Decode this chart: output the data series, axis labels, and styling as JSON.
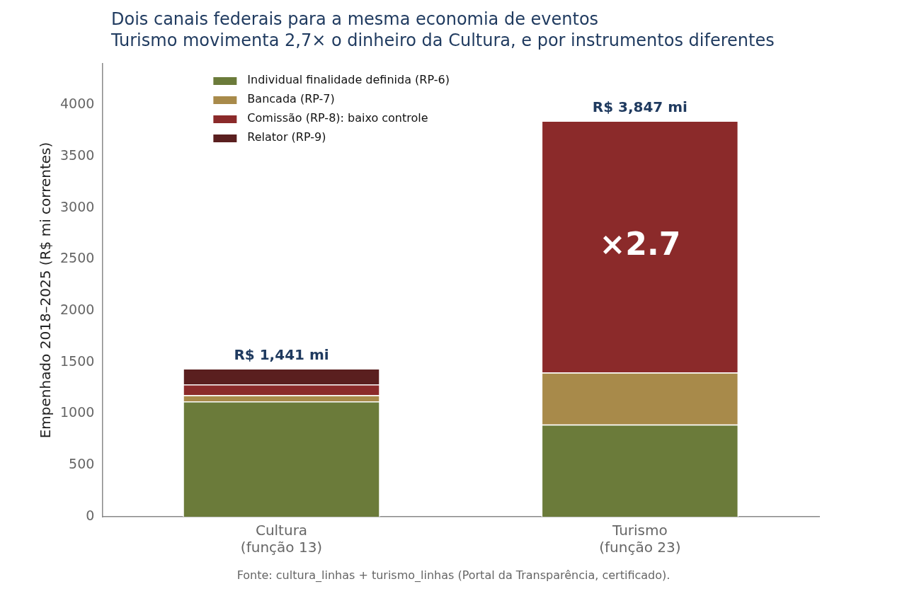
{
  "chart_data": {
    "type": "bar",
    "title": "Dois canais federais para a mesma economia de eventos",
    "subtitle": "Turismo movimenta 2,7× o dinheiro da Cultura, e por instrumentos diferentes",
    "ylabel": "Empenhado 2018–2025 (R$ mi correntes)",
    "categories": [
      "Cultura\n(função 13)",
      "Turismo\n(função 23)"
    ],
    "stacked": true,
    "series": [
      {
        "name": "Individual finalidade definida (RP-6)",
        "color": "#6b7b3a",
        "values": [
          1120,
          895
        ]
      },
      {
        "name": "Bancada (RP-7)",
        "color": "#a88a4a",
        "values": [
          60,
          505
        ]
      },
      {
        "name": "Comissão (RP-8): baixo controle",
        "color": "#8b2a2a",
        "values": [
          105,
          2447
        ]
      },
      {
        "name": "Relator (RP-9)",
        "color": "#5a1f1f",
        "values": [
          156,
          0
        ]
      }
    ],
    "totals": [
      "R$ 1,441 mi",
      "R$ 3,847 mi"
    ],
    "ylim": [
      0,
      4400
    ],
    "yticks": [
      0,
      500,
      1000,
      1500,
      2000,
      2500,
      3000,
      3500,
      4000
    ],
    "grid": false,
    "legend": "top left",
    "annotations": [
      "×2.7",
      "Fonte: cultura_linhas + turismo_linhas (Portal da Transparência, certificado)."
    ]
  }
}
